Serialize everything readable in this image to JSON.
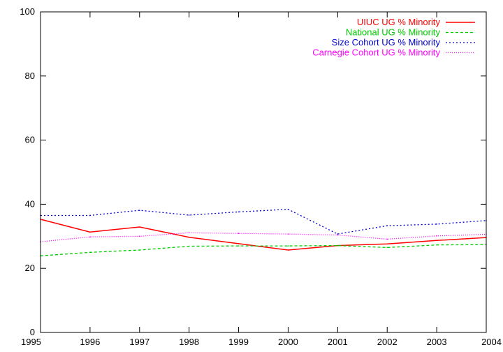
{
  "chart_data": {
    "type": "line",
    "title": "",
    "xlabel": "",
    "ylabel": "",
    "x": [
      1995,
      1996,
      1997,
      1998,
      1999,
      2000,
      2001,
      2002,
      2003,
      2004
    ],
    "xlim": [
      1995,
      2004
    ],
    "ylim": [
      0,
      100
    ],
    "xticks": [
      "1995",
      "1996",
      "1997",
      "1998",
      "1999",
      "2000",
      "2001",
      "2002",
      "2003",
      "2004"
    ],
    "yticks": [
      "0",
      "20",
      "40",
      "60",
      "80",
      "100"
    ],
    "grid": false,
    "legend": "top-right",
    "series": [
      {
        "name": "UIUC UG % Minority",
        "color": "#ff0000",
        "dash": "solid",
        "values": [
          35.3,
          31.3,
          32.9,
          29.7,
          27.7,
          25.7,
          27.1,
          27.6,
          28.7,
          29.6
        ]
      },
      {
        "name": "National UG % Minority",
        "color": "#00cc00",
        "dash": "dashed",
        "values": [
          23.9,
          25.0,
          25.7,
          26.9,
          27.0,
          27.0,
          27.1,
          26.5,
          27.3,
          27.4
        ]
      },
      {
        "name": "Size Cohort UG % Minority",
        "color": "#0000cc",
        "dash": "dotted",
        "values": [
          36.5,
          36.5,
          38.1,
          36.6,
          37.6,
          38.4,
          30.7,
          33.3,
          33.8,
          34.9
        ]
      },
      {
        "name": "Carnegie Cohort UG % Minority",
        "color": "#ff00ff",
        "dash": "dotted-fine",
        "values": [
          28.3,
          29.8,
          30.0,
          31.1,
          30.9,
          30.7,
          30.4,
          29.1,
          30.1,
          30.6
        ]
      }
    ]
  }
}
